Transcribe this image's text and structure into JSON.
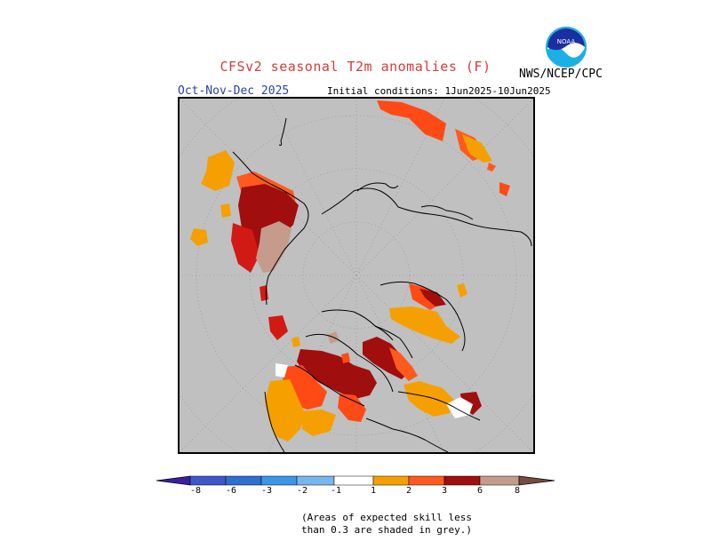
{
  "title": "CFSv2 seasonal T2m anomalies (F)",
  "agency": "NWS/NCEP/CPC",
  "logo_text": "NOAA",
  "season": "Oct-Nov-Dec 2025",
  "initial_conditions": "Initial conditions: 1Jun2025-10Jun2025",
  "colorbar": {
    "labels": [
      "-8",
      "-6",
      "-3",
      "-2",
      "-1",
      "1",
      "2",
      "3",
      "6",
      "8"
    ],
    "colors": [
      "#3a1fa0",
      "#3f56cc",
      "#2e6fcf",
      "#3a96e8",
      "#78b6ee",
      "#ffffff",
      "#f5a000",
      "#ff5a1e",
      "#d21a14",
      "#a00e0e",
      "#c59b8c",
      "#7a4a40"
    ]
  },
  "note_line1": "(Areas of expected skill less",
  "note_line2": "than 0.3 are shaded in grey.)",
  "anomaly_colors": {
    "grey": "#c0c0c0",
    "orange": "#f5a000",
    "red_orange": "#ff4a16",
    "red": "#d21a14",
    "dark_red": "#a00e0e",
    "pink_brown": "#c59b8c",
    "white": "#ffffff"
  }
}
